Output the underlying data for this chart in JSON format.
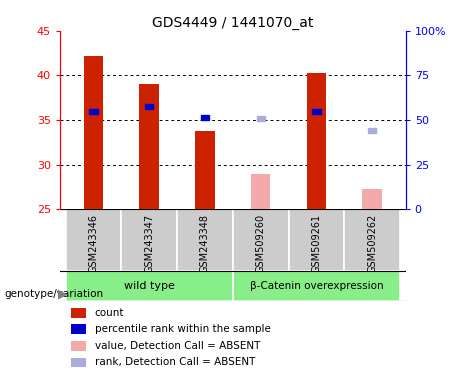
{
  "title": "GDS4449 / 1441070_at",
  "samples": [
    "GSM243346",
    "GSM243347",
    "GSM243348",
    "GSM509260",
    "GSM509261",
    "GSM509262"
  ],
  "ylim_left": [
    25,
    45
  ],
  "ylim_right": [
    0,
    100
  ],
  "yticks_left": [
    25,
    30,
    35,
    40,
    45
  ],
  "yticks_right": [
    0,
    25,
    50,
    75,
    100
  ],
  "ytick_right_labels": [
    "0",
    "25",
    "50",
    "75",
    "100%"
  ],
  "count_values": [
    42.2,
    39.0,
    33.8,
    29.0,
    40.3,
    27.3
  ],
  "rank_values": [
    36.0,
    36.5,
    35.3,
    35.2,
    36.0,
    33.8
  ],
  "detection_call": [
    "P",
    "P",
    "P",
    "A",
    "P",
    "A"
  ],
  "count_color_present": "#CC2200",
  "count_color_absent": "#F4AAAA",
  "rank_color_present": "#0000CC",
  "rank_color_absent": "#AAAADD",
  "bar_width": 0.35,
  "ybase": 25,
  "sample_panel_color": "#CCCCCC",
  "wt_color": "#88EE88",
  "bc_color": "#88EE88",
  "grid_ticks": [
    30,
    35,
    40
  ],
  "legend_items": [
    {
      "color": "#CC2200",
      "label": "count"
    },
    {
      "color": "#0000CC",
      "label": "percentile rank within the sample"
    },
    {
      "color": "#F4AAAA",
      "label": "value, Detection Call = ABSENT"
    },
    {
      "color": "#AAAADD",
      "label": "rank, Detection Call = ABSENT"
    }
  ]
}
